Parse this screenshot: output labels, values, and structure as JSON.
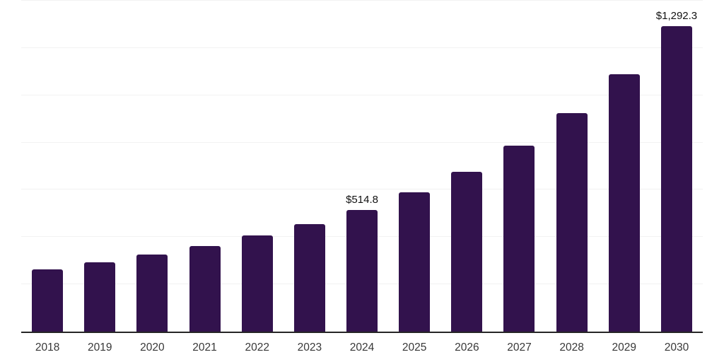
{
  "chart_data": {
    "type": "bar",
    "title": "",
    "xlabel": "",
    "ylabel": "",
    "categories": [
      "2018",
      "2019",
      "2020",
      "2021",
      "2022",
      "2023",
      "2024",
      "2025",
      "2026",
      "2027",
      "2028",
      "2029",
      "2030"
    ],
    "values": [
      262,
      292,
      325,
      361,
      407,
      455,
      514.8,
      589,
      676,
      787,
      925,
      1090,
      1292.3
    ],
    "point_labels": [
      "",
      "",
      "",
      "",
      "",
      "",
      "$514.8",
      "",
      "",
      "",
      "",
      "",
      "$1,292.3"
    ],
    "annotations": [
      {
        "category": "2024",
        "text": "$514.8"
      },
      {
        "category": "2030",
        "text": "$1,292.3"
      }
    ],
    "ylim": [
      0,
      1400
    ],
    "gridline_interval": 200,
    "grid": "horizontal",
    "legend_position": "none",
    "y_tick_labels_visible": false
  },
  "style": {
    "bar_color": "#32124D",
    "gridline_color": "#F2F2F2",
    "axis_line_color": "#262626",
    "x_label_color": "#383838",
    "annotation_color": "#111111",
    "background_color": "#FFFFFF"
  }
}
